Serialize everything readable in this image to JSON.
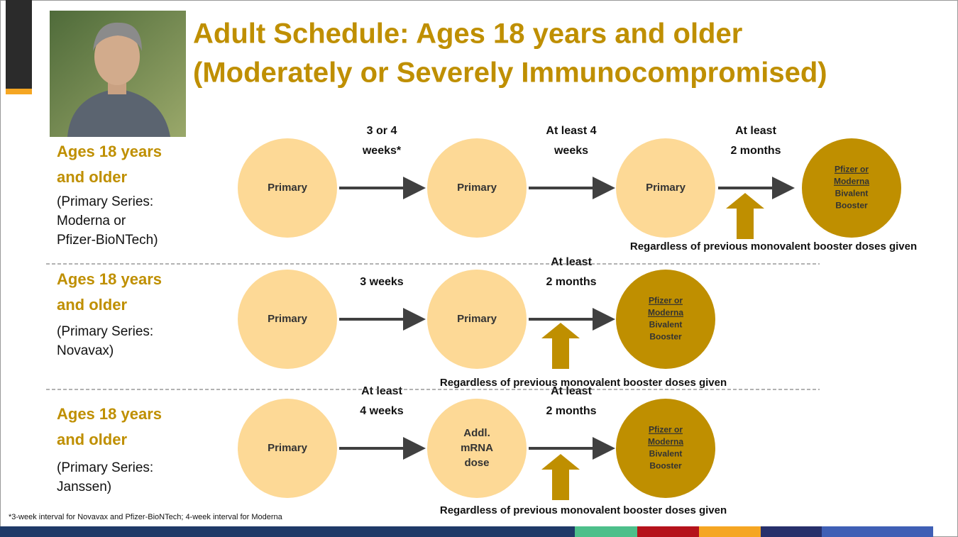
{
  "header": {
    "title_lines": [
      "Adult Schedule: Ages 18 years and older",
      "(Moderately or Severely Immunocompromised)"
    ]
  },
  "rows": [
    {
      "label_lines": [
        "Ages 18 years",
        "and older"
      ],
      "detail_lines": [
        "(Primary Series:",
        "Moderna or",
        "Pfizer-BioNTech)"
      ],
      "doses": [
        [
          "Primary"
        ],
        [
          "Primary"
        ],
        [
          "Primary"
        ],
        [
          "Pfizer or",
          "Moderna",
          "Bivalent",
          "Booster"
        ]
      ],
      "intervals": [
        [
          "3 or 4",
          "weeks*"
        ],
        [
          "At least 4",
          "weeks"
        ],
        [
          "At least",
          "2 months"
        ]
      ],
      "note": "Regardless of previous monovalent booster doses given"
    },
    {
      "label_lines": [
        "Ages 18 years",
        "and older"
      ],
      "detail_lines": [
        "(Primary Series:",
        "Novavax)"
      ],
      "doses": [
        [
          "Primary"
        ],
        [
          "Primary"
        ],
        [
          "Pfizer or",
          "Moderna",
          "Bivalent",
          "Booster"
        ]
      ],
      "intervals": [
        [
          "3 weeks"
        ],
        [
          "At least",
          "2 months"
        ]
      ],
      "note": "Regardless of previous monovalent booster doses given"
    },
    {
      "label_lines": [
        "Ages 18 years",
        "and older"
      ],
      "detail_lines": [
        "(Primary Series:",
        "Janssen)"
      ],
      "doses": [
        [
          "Primary"
        ],
        [
          "Addl.",
          "mRNA",
          "dose"
        ],
        [
          "Pfizer or",
          "Moderna",
          "Bivalent",
          "Booster"
        ]
      ],
      "intervals": [
        [
          "At least",
          "4 weeks"
        ],
        [
          "At least",
          "2 months"
        ]
      ],
      "note": "Regardless of previous monovalent booster doses given"
    }
  ],
  "footnote": "*3-week interval for Novavax and Pfizer-BioNTech; 4-week interval for Moderna"
}
